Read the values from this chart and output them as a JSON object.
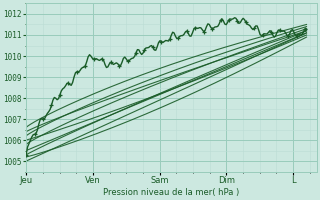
{
  "bg_color": "#cce8e0",
  "plot_bg_color": "#cce8e0",
  "grid_color_major": "#99ccbb",
  "grid_color_minor": "#bbddd5",
  "line_color": "#1a5c28",
  "ylabel": "Pression niveau de la mer( hPa )",
  "xlabels": [
    "Jeu",
    "Ven",
    "Sam",
    "Dim",
    "L"
  ],
  "ylim": [
    1004.5,
    1012.5
  ],
  "yticks": [
    1005,
    1006,
    1007,
    1008,
    1009,
    1010,
    1011,
    1012
  ]
}
